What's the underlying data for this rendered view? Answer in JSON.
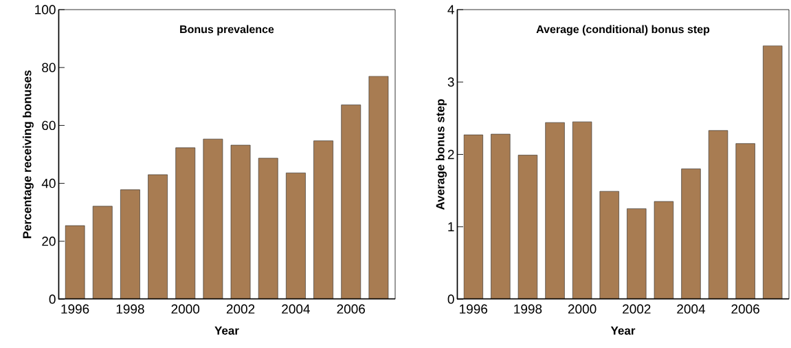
{
  "chart_data": [
    {
      "type": "bar",
      "title": "Bonus prevalence",
      "xlabel": "Year",
      "ylabel": "Percentage receiving bonuses",
      "color": "#a87c52",
      "x": [
        1996,
        1997,
        1998,
        1999,
        2000,
        2001,
        2002,
        2003,
        2004,
        2005,
        2006,
        2007
      ],
      "values": [
        25.4,
        32.1,
        37.8,
        43.0,
        52.3,
        55.3,
        53.2,
        48.7,
        43.6,
        54.7,
        67.1,
        77.0
      ],
      "xlim": [
        1995.4,
        2007.6
      ],
      "xticks": [
        1996,
        1998,
        2000,
        2002,
        2004,
        2006
      ],
      "ylim": [
        0,
        100
      ],
      "yticks": [
        0,
        20,
        40,
        60,
        80,
        100
      ]
    },
    {
      "type": "bar",
      "title": "Average (conditional) bonus step",
      "xlabel": "Year",
      "ylabel": "Average bonus step",
      "color": "#a87c52",
      "x": [
        1996,
        1997,
        1998,
        1999,
        2000,
        2001,
        2002,
        2003,
        2004,
        2005,
        2006,
        2007
      ],
      "values": [
        2.27,
        2.28,
        1.99,
        2.44,
        2.45,
        1.49,
        1.25,
        1.35,
        1.8,
        2.33,
        2.15,
        3.5
      ],
      "xlim": [
        1995.4,
        2007.6
      ],
      "xticks": [
        1996,
        1998,
        2000,
        2002,
        2004,
        2006
      ],
      "ylim": [
        0,
        4
      ],
      "yticks": [
        0,
        1,
        2,
        3,
        4
      ]
    }
  ]
}
